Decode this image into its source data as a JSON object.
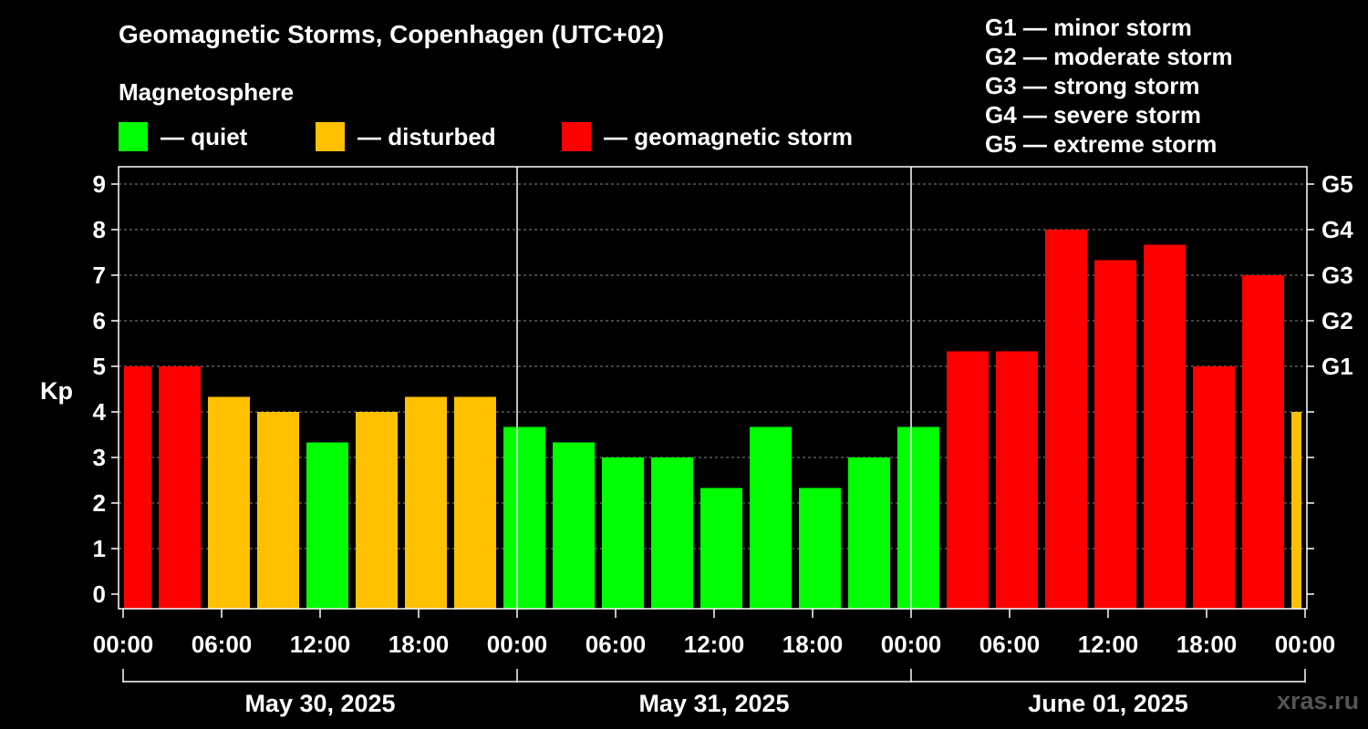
{
  "title": "Geomagnetic Storms, Copenhagen (UTC+02)",
  "magnetosphere": {
    "heading": "Magnetosphere",
    "items": [
      {
        "label": "— quiet",
        "color": "#00ff00"
      },
      {
        "label": "— disturbed",
        "color": "#ffc000"
      },
      {
        "label": "— geomagnetic storm",
        "color": "#ff0000"
      }
    ]
  },
  "g_legend": [
    "G1 — minor storm",
    "G2 — moderate storm",
    "G3 — strong storm",
    "G4 — severe storm",
    "G5 — extreme storm"
  ],
  "watermark": "xras.ru",
  "chart_data": {
    "type": "bar",
    "ylabel": "Kp",
    "ylim": [
      0,
      9
    ],
    "yticks": [
      "0",
      "1",
      "2",
      "3",
      "4",
      "5",
      "6",
      "7",
      "8",
      "9"
    ],
    "right_labels": [
      {
        "kp": 5,
        "label": "G1"
      },
      {
        "kp": 6,
        "label": "G2"
      },
      {
        "kp": 7,
        "label": "G3"
      },
      {
        "kp": 8,
        "label": "G4"
      },
      {
        "kp": 9,
        "label": "G5"
      }
    ],
    "grid": "horizontal dashed",
    "xtick_labels": [
      "00:00",
      "06:00",
      "12:00",
      "18:00",
      "00:00",
      "06:00",
      "12:00",
      "18:00",
      "00:00",
      "06:00",
      "12:00",
      "18:00",
      "00:00"
    ],
    "days": [
      "May 30, 2025",
      "May 31, 2025",
      "June 01, 2025"
    ],
    "colors": {
      "quiet": "#00ff00",
      "disturbed": "#ffc000",
      "storm": "#ff0000"
    },
    "values": [
      5.0,
      5.0,
      4.33,
      4.0,
      3.33,
      4.0,
      4.33,
      4.33,
      3.67,
      3.33,
      3.0,
      3.0,
      2.33,
      3.67,
      2.33,
      3.0,
      3.67,
      5.33,
      5.33,
      8.0,
      7.33,
      7.67,
      5.0,
      7.0,
      4.0
    ],
    "status": [
      "storm",
      "storm",
      "disturbed",
      "disturbed",
      "quiet",
      "disturbed",
      "disturbed",
      "disturbed",
      "quiet",
      "quiet",
      "quiet",
      "quiet",
      "quiet",
      "quiet",
      "quiet",
      "quiet",
      "quiet",
      "storm",
      "storm",
      "storm",
      "storm",
      "storm",
      "storm",
      "storm",
      "disturbed"
    ]
  }
}
